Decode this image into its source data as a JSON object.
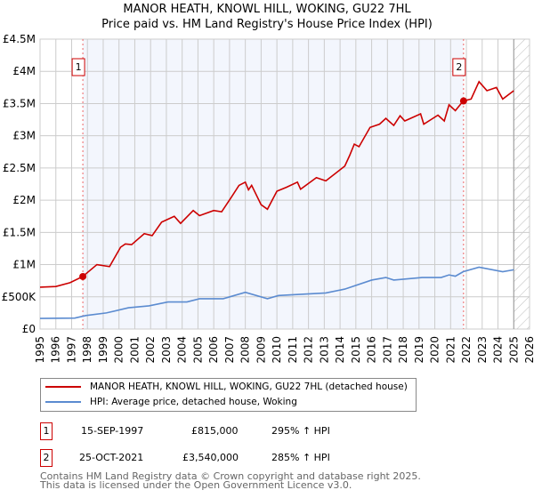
{
  "chart_data": {
    "type": "line",
    "title": "MANOR HEATH, KNOWL HILL, WOKING, GU22 7HL",
    "subtitle": "Price paid vs. HM Land Registry's House Price Index (HPI)",
    "xlim": [
      1995,
      2026
    ],
    "ylim": [
      0,
      4500000
    ],
    "x_ticks": [
      "1995",
      "1996",
      "1997",
      "1998",
      "1999",
      "2000",
      "2001",
      "2002",
      "2003",
      "2004",
      "2005",
      "2006",
      "2007",
      "2008",
      "2009",
      "2010",
      "2011",
      "2012",
      "2013",
      "2014",
      "2015",
      "2016",
      "2017",
      "2018",
      "2019",
      "2020",
      "2021",
      "2022",
      "2023",
      "2024",
      "2025",
      "2026"
    ],
    "y_ticks": [
      {
        "v": 0,
        "l": "£0"
      },
      {
        "v": 500000,
        "l": "£500K"
      },
      {
        "v": 1000000,
        "l": "£1M"
      },
      {
        "v": 1500000,
        "l": "£1.5M"
      },
      {
        "v": 2000000,
        "l": "£2M"
      },
      {
        "v": 2500000,
        "l": "£2.5M"
      },
      {
        "v": 3000000,
        "l": "£3M"
      },
      {
        "v": 3500000,
        "l": "£3.5M"
      },
      {
        "v": 4000000,
        "l": "£4M"
      },
      {
        "v": 4500000,
        "l": "£4.5M"
      }
    ],
    "grid": true,
    "series": [
      {
        "name": "MANOR HEATH, KNOWL HILL, WOKING, GU22 7HL (detached house)",
        "color": "#cc0000",
        "x": [
          1995,
          1996,
          1996.9,
          1997.7,
          1998.6,
          1999.4,
          2000.1,
          2000.4,
          2000.8,
          2001.6,
          2002.1,
          2002.7,
          2003.5,
          2003.9,
          2004.7,
          2005.1,
          2006.0,
          2006.5,
          2007.1,
          2007.6,
          2008.0,
          2008.2,
          2008.4,
          2009.0,
          2009.4,
          2010.0,
          2010.6,
          2011.3,
          2011.5,
          2012.5,
          2013.1,
          2014.3,
          2014.6,
          2014.9,
          2015.2,
          2015.9,
          2016.5,
          2016.9,
          2017.4,
          2017.8,
          2018.1,
          2019.1,
          2019.3,
          2020.2,
          2020.6,
          2020.9,
          2021.3,
          2021.8,
          2022.3,
          2022.8,
          2023.3,
          2023.9,
          2024.3,
          2025.0
        ],
        "y": [
          650000,
          660000,
          720000,
          815000,
          1000000,
          970000,
          1270000,
          1320000,
          1310000,
          1480000,
          1450000,
          1660000,
          1750000,
          1640000,
          1840000,
          1760000,
          1840000,
          1820000,
          2040000,
          2230000,
          2280000,
          2160000,
          2230000,
          1930000,
          1860000,
          2140000,
          2200000,
          2280000,
          2170000,
          2350000,
          2300000,
          2530000,
          2690000,
          2870000,
          2830000,
          3130000,
          3180000,
          3270000,
          3160000,
          3310000,
          3230000,
          3340000,
          3180000,
          3320000,
          3230000,
          3480000,
          3390000,
          3540000,
          3570000,
          3840000,
          3700000,
          3750000,
          3570000,
          3700000
        ]
      },
      {
        "name": "HPI: Average price, detached house, Woking",
        "color": "#5b8bd0",
        "x": [
          1995,
          1997.2,
          1997.9,
          1999.2,
          2000.6,
          2001.9,
          2003.1,
          2004.3,
          2005.1,
          2006.6,
          2008.0,
          2009.4,
          2010.1,
          2013.1,
          2014.3,
          2016.0,
          2016.9,
          2017.4,
          2019.2,
          2020.4,
          2020.9,
          2021.3,
          2021.8,
          2022.8,
          2024.3,
          2025.0
        ],
        "y": [
          165000,
          170000,
          210000,
          250000,
          330000,
          360000,
          420000,
          420000,
          470000,
          470000,
          570000,
          470000,
          520000,
          560000,
          620000,
          760000,
          800000,
          760000,
          800000,
          800000,
          840000,
          820000,
          890000,
          960000,
          890000,
          920000
        ]
      }
    ],
    "sales": [
      {
        "label": "1",
        "x": 1997.71,
        "y": 815000
      },
      {
        "label": "2",
        "x": 2021.82,
        "y": 3540000
      }
    ],
    "data_end": 2025.0
  },
  "legend": {
    "items": [
      "MANOR HEATH, KNOWL HILL, WOKING, GU22 7HL (detached house)",
      "HPI: Average price, detached house, Woking"
    ]
  },
  "transactions": [
    {
      "num": "1",
      "date": "15-SEP-1997",
      "price": "£815,000",
      "hpi": "295% ↑ HPI"
    },
    {
      "num": "2",
      "date": "25-OCT-2021",
      "price": "£3,540,000",
      "hpi": "285% ↑ HPI"
    }
  ],
  "footer": {
    "line1": "Contains HM Land Registry data © Crown copyright and database right 2025.",
    "line2": "This data is licensed under the Open Government Licence v3.0."
  }
}
